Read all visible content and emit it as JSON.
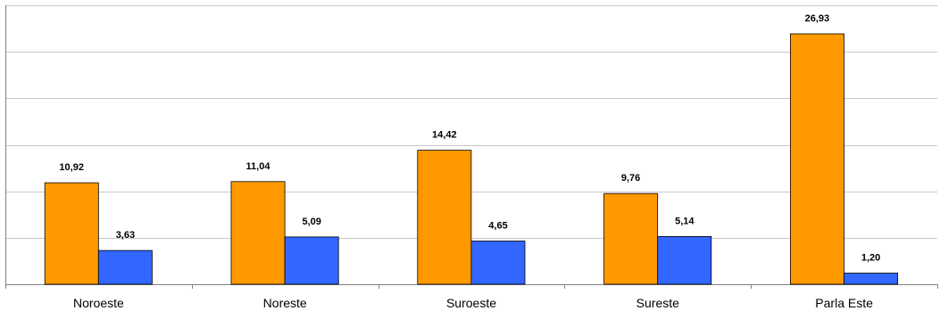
{
  "chart_data": {
    "type": "bar",
    "categories": [
      "Noroeste",
      "Noreste",
      "Suroeste",
      "Sureste",
      "Parla Este"
    ],
    "series": [
      {
        "values": [
          10.92,
          11.04,
          14.42,
          9.76,
          26.93
        ],
        "labels": [
          "10,92",
          "11,04",
          "14,42",
          "9,76",
          "26,93"
        ],
        "color": "#FF9900"
      },
      {
        "values": [
          3.63,
          5.09,
          4.65,
          5.14,
          1.2
        ],
        "labels": [
          "3,63",
          "5,09",
          "4,65",
          "5,14",
          "1,20"
        ],
        "color": "#3366FF"
      }
    ],
    "ylim": [
      0,
      30
    ],
    "grid": true,
    "legend": false,
    "title": "",
    "xlabel": "",
    "ylabel": ""
  }
}
